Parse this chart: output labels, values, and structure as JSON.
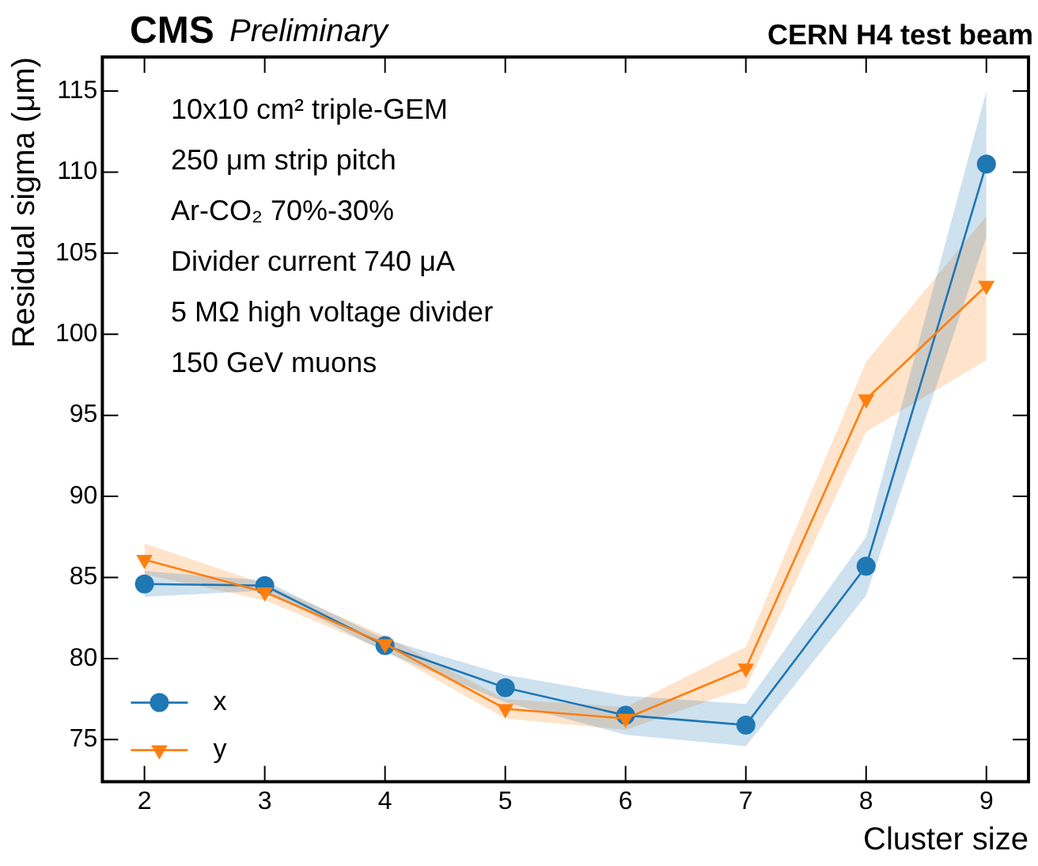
{
  "chart_data": {
    "type": "line",
    "xlabel": "Cluster size",
    "ylabel": "Residual sigma (μm)",
    "annotations": [
      "CMS",
      "Preliminary",
      "CERN H4 test beam",
      "10x10 cm² triple-GEM",
      "250 μm strip pitch",
      "Ar-CO₂ 70%-30%",
      "Divider current 740 μA",
      "5 MΩ high voltage divider",
      "150 GeV muons"
    ],
    "x": [
      2,
      3,
      4,
      5,
      6,
      7,
      8,
      9
    ],
    "xlim": [
      1.65,
      9.35
    ],
    "xticks": [
      2,
      3,
      4,
      5,
      6,
      7,
      8,
      9
    ],
    "ylim": [
      72.4,
      117.1
    ],
    "yticks": [
      75,
      80,
      85,
      90,
      95,
      100,
      105,
      110,
      115
    ],
    "legend": "bottom left",
    "grid": false,
    "series": [
      {
        "name": "x",
        "color": "#1f77b4",
        "marker": "circle",
        "values": [
          84.6,
          84.5,
          80.8,
          78.2,
          76.5,
          75.9,
          85.7,
          110.5
        ],
        "lower": [
          83.8,
          84.2,
          80.4,
          77.3,
          75.3,
          74.6,
          83.9,
          106.0
        ],
        "upper": [
          85.4,
          84.8,
          81.2,
          79.0,
          77.7,
          77.2,
          87.5,
          115.0
        ]
      },
      {
        "name": "y",
        "color": "#ff7f0e",
        "marker": "triangle_down",
        "values": [
          86.1,
          84.1,
          80.9,
          76.9,
          76.3,
          79.4,
          96.0,
          103.0
        ],
        "lower": [
          85.2,
          83.6,
          80.5,
          76.3,
          75.6,
          78.2,
          94.0,
          98.4
        ],
        "upper": [
          87.1,
          84.6,
          81.4,
          77.5,
          77.0,
          80.7,
          98.3,
          107.3
        ]
      }
    ]
  }
}
